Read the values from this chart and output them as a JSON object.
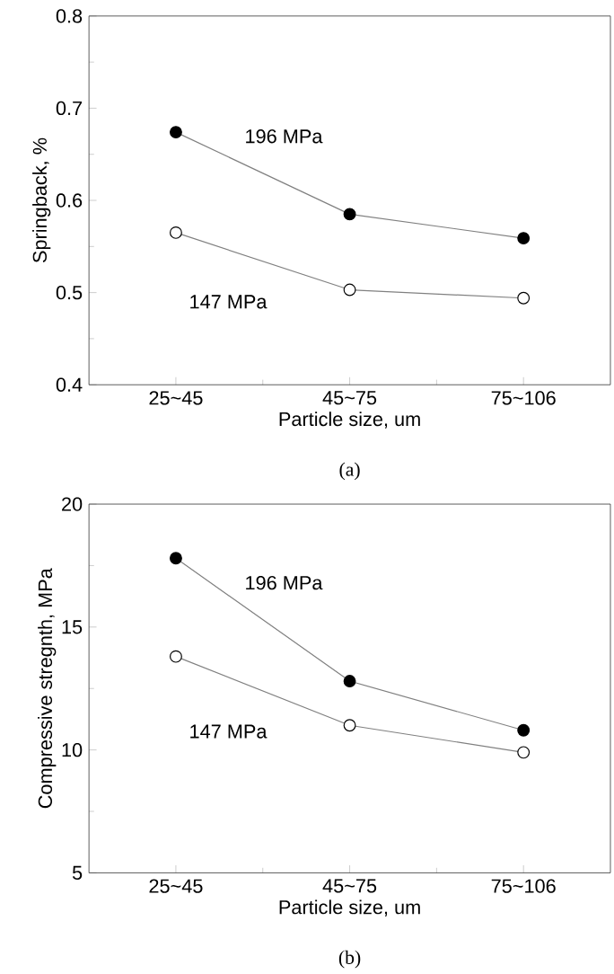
{
  "chart_data": [
    {
      "type": "line",
      "xlabel": "Particle size, um",
      "ylabel": "Springback, %",
      "categories": [
        "25~45",
        "45~75",
        "75~106"
      ],
      "ylim": [
        0.4,
        0.8
      ],
      "yticks": [
        0.4,
        0.5,
        0.6,
        0.7,
        0.8
      ],
      "marker": "circle",
      "legend": false,
      "grid": false,
      "series": [
        {
          "name": "196 MPa",
          "color": "#000000",
          "values": [
            0.674,
            0.585,
            0.559
          ]
        },
        {
          "name": "147 MPa",
          "color": "#ffffff",
          "values": [
            0.565,
            0.503,
            0.494
          ]
        }
      ],
      "annotations": [
        "(a)"
      ]
    },
    {
      "type": "line",
      "xlabel": "Particle size, um",
      "ylabel": "Compressive stregnth, MPa",
      "categories": [
        "25~45",
        "45~75",
        "75~106"
      ],
      "ylim": [
        5,
        20
      ],
      "yticks": [
        5,
        10,
        15,
        20
      ],
      "marker": "circle",
      "legend": false,
      "grid": false,
      "series": [
        {
          "name": "196 MPa",
          "color": "#000000",
          "values": [
            17.8,
            12.8,
            10.8
          ]
        },
        {
          "name": "147 MPa",
          "color": "#ffffff",
          "values": [
            13.8,
            11.0,
            9.9
          ]
        }
      ],
      "annotations": [
        "(b)"
      ]
    }
  ]
}
